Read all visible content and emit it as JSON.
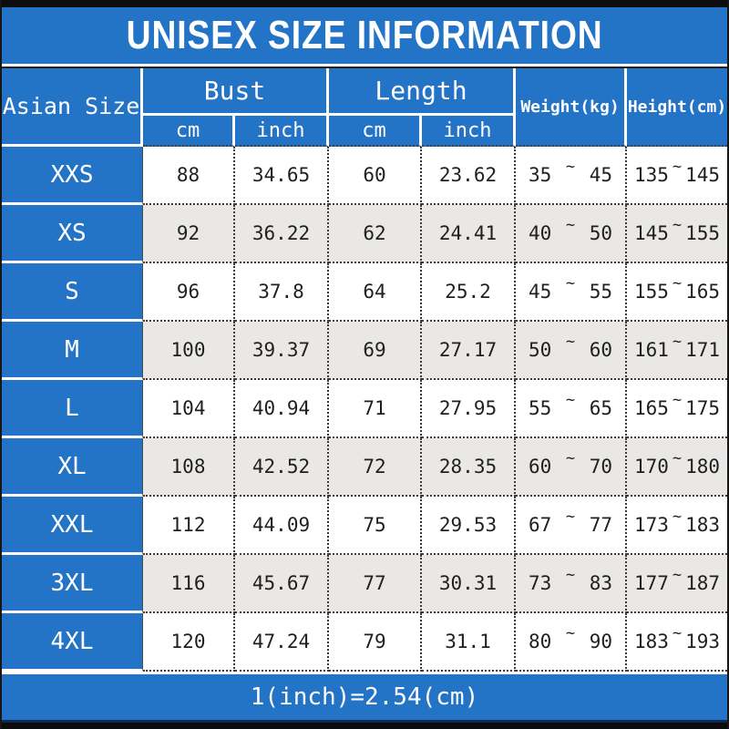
{
  "title": "UNISEX SIZE INFORMATION",
  "header": {
    "size_col": "Asian Size",
    "bust": "Bust",
    "length": "Length",
    "weight": "Weight(kg)",
    "height": "Height(cm)",
    "cm": "cm",
    "inch": "inch"
  },
  "glyphs": {
    "tilde": "~"
  },
  "footer": {
    "note": "1(inch)=2.54(cm)"
  },
  "colors": {
    "blue": "#2373c6",
    "row_alt_gray": "#e9e8e6",
    "row_white": "#ffffff",
    "text_dark": "#1f1f1f",
    "bar_black": "#0c0c0c"
  },
  "rows": [
    {
      "size": "XXS",
      "bust_cm": "88",
      "bust_inch": "34.65",
      "length_cm": "60",
      "length_inch": "23.62",
      "weight_min": "35",
      "weight_max": "45",
      "height_min": "135",
      "height_max": "145"
    },
    {
      "size": "XS",
      "bust_cm": "92",
      "bust_inch": "36.22",
      "length_cm": "62",
      "length_inch": "24.41",
      "weight_min": "40",
      "weight_max": "50",
      "height_min": "145",
      "height_max": "155"
    },
    {
      "size": "S",
      "bust_cm": "96",
      "bust_inch": "37.8",
      "length_cm": "64",
      "length_inch": "25.2",
      "weight_min": "45",
      "weight_max": "55",
      "height_min": "155",
      "height_max": "165"
    },
    {
      "size": "M",
      "bust_cm": "100",
      "bust_inch": "39.37",
      "length_cm": "69",
      "length_inch": "27.17",
      "weight_min": "50",
      "weight_max": "60",
      "height_min": "161",
      "height_max": "171"
    },
    {
      "size": "L",
      "bust_cm": "104",
      "bust_inch": "40.94",
      "length_cm": "71",
      "length_inch": "27.95",
      "weight_min": "55",
      "weight_max": "65",
      "height_min": "165",
      "height_max": "175"
    },
    {
      "size": "XL",
      "bust_cm": "108",
      "bust_inch": "42.52",
      "length_cm": "72",
      "length_inch": "28.35",
      "weight_min": "60",
      "weight_max": "70",
      "height_min": "170",
      "height_max": "180"
    },
    {
      "size": "XXL",
      "bust_cm": "112",
      "bust_inch": "44.09",
      "length_cm": "75",
      "length_inch": "29.53",
      "weight_min": "67",
      "weight_max": "77",
      "height_min": "173",
      "height_max": "183"
    },
    {
      "size": "3XL",
      "bust_cm": "116",
      "bust_inch": "45.67",
      "length_cm": "77",
      "length_inch": "30.31",
      "weight_min": "73",
      "weight_max": "83",
      "height_min": "177",
      "height_max": "187"
    },
    {
      "size": "4XL",
      "bust_cm": "120",
      "bust_inch": "47.24",
      "length_cm": "79",
      "length_inch": "31.1",
      "weight_min": "80",
      "weight_max": "90",
      "height_min": "183",
      "height_max": "193"
    }
  ],
  "chart_data": {
    "type": "table",
    "title": "UNISEX SIZE INFORMATION",
    "note": "1(inch)=2.54(cm)",
    "columns": [
      "Asian Size",
      "Bust (cm)",
      "Bust (inch)",
      "Length (cm)",
      "Length (inch)",
      "Weight (kg)",
      "Height (cm)"
    ],
    "rows": [
      [
        "XXS",
        88,
        34.65,
        60,
        23.62,
        "35~45",
        "135~145"
      ],
      [
        "XS",
        92,
        36.22,
        62,
        24.41,
        "40~50",
        "145~155"
      ],
      [
        "S",
        96,
        37.8,
        64,
        25.2,
        "45~55",
        "155~165"
      ],
      [
        "M",
        100,
        39.37,
        69,
        27.17,
        "50~60",
        "161~171"
      ],
      [
        "L",
        104,
        40.94,
        71,
        27.95,
        "55~65",
        "165~175"
      ],
      [
        "XL",
        108,
        42.52,
        72,
        28.35,
        "60~70",
        "170~180"
      ],
      [
        "XXL",
        112,
        44.09,
        75,
        29.53,
        "67~77",
        "173~183"
      ],
      [
        "3XL",
        116,
        45.67,
        77,
        30.31,
        "73~83",
        "177~187"
      ],
      [
        "4XL",
        120,
        47.24,
        79,
        31.1,
        "80~90",
        "183~193"
      ]
    ]
  }
}
